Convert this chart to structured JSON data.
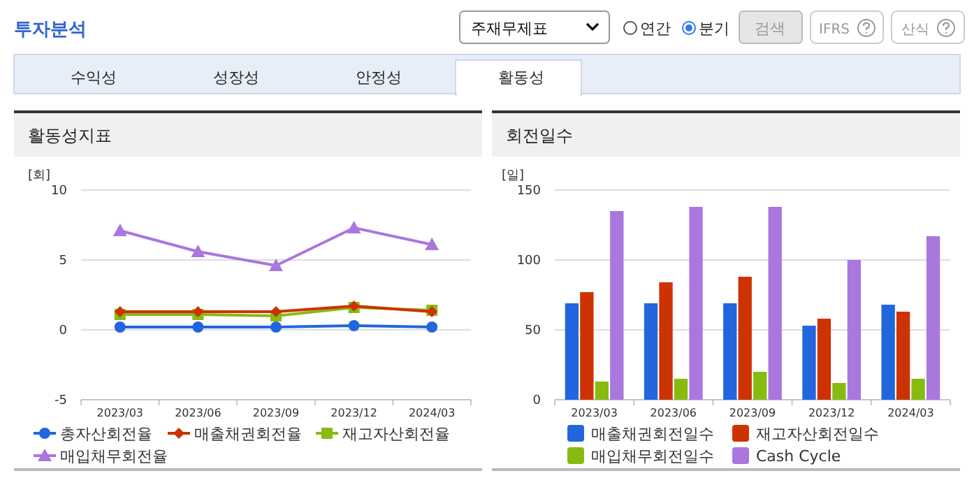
{
  "chart_data": [
    {
      "type": "line",
      "title": "활동성지표",
      "ylabel": "[회]",
      "categories": [
        "2023/03",
        "2023/06",
        "2023/09",
        "2023/12",
        "2024/03"
      ],
      "ylim": [
        -5,
        10
      ],
      "yticks": [
        -5,
        0,
        5,
        10
      ],
      "grid": "y",
      "legend": "bottom",
      "annotations": [
        "투자분석",
        "주재무제표",
        "연간",
        "분기",
        "검색",
        "IFRS",
        "산식",
        "수익성",
        "성장성",
        "안정성",
        "활동성"
      ],
      "series": [
        {
          "name": "총자산회전율",
          "color": "#2266dd",
          "marker": "circle",
          "values": [
            0.2,
            0.2,
            0.2,
            0.3,
            0.2
          ]
        },
        {
          "name": "매출채권회전율",
          "color": "#cc3300",
          "marker": "diamond",
          "values": [
            1.3,
            1.3,
            1.3,
            1.7,
            1.3
          ]
        },
        {
          "name": "재고자산회전율",
          "color": "#88bb11",
          "marker": "square",
          "values": [
            1.1,
            1.1,
            1.0,
            1.6,
            1.4
          ]
        },
        {
          "name": "매입채무회전율",
          "color": "#aa77dd",
          "marker": "triangle",
          "values": [
            7.1,
            5.6,
            4.6,
            7.3,
            6.1
          ]
        }
      ]
    },
    {
      "type": "bar",
      "title": "회전일수",
      "ylabel": "[일]",
      "categories": [
        "2023/03",
        "2023/06",
        "2023/09",
        "2023/12",
        "2024/03"
      ],
      "ylim": [
        0,
        150
      ],
      "yticks": [
        0,
        50,
        100,
        150
      ],
      "grid": "y",
      "legend": "bottom",
      "series": [
        {
          "name": "매출채권회전일수",
          "color": "#2266dd",
          "values": [
            69,
            69,
            69,
            53,
            68
          ]
        },
        {
          "name": "재고자산회전일수",
          "color": "#cc3300",
          "values": [
            77,
            84,
            88,
            58,
            63
          ]
        },
        {
          "name": "매입채무회전일수",
          "color": "#88bb11",
          "values": [
            13,
            15,
            20,
            12,
            15
          ]
        },
        {
          "name": "Cash Cycle",
          "color": "#aa77dd",
          "values": [
            135,
            138,
            138,
            100,
            117
          ]
        }
      ]
    }
  ]
}
